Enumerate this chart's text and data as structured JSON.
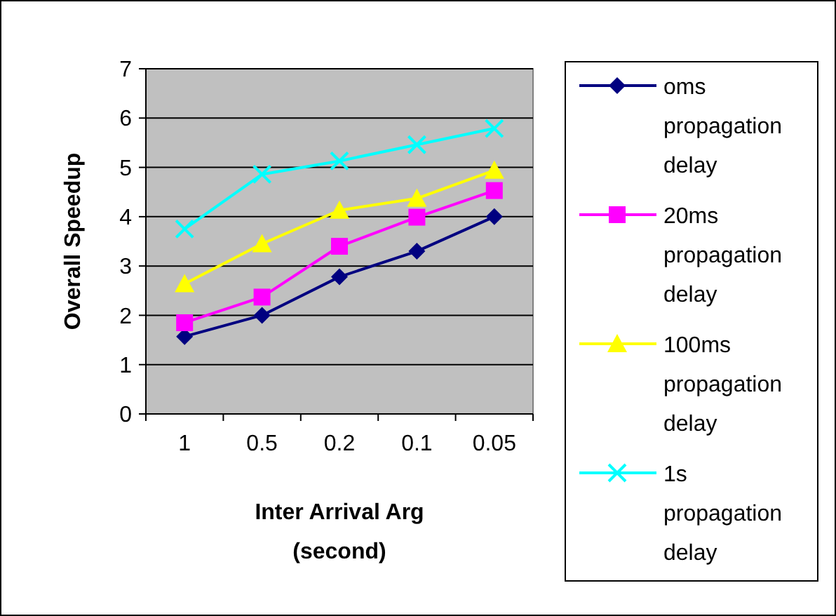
{
  "chart_data": {
    "type": "line",
    "xlabel": "Inter Arrival Arg (second)",
    "ylabel": "Overall Speedup",
    "categories": [
      "1",
      "0.5",
      "0.2",
      "0.1",
      "0.05"
    ],
    "series": [
      {
        "name": "oms propagation delay",
        "color": "#000080",
        "marker": "diamond",
        "values": [
          1.57,
          2.0,
          2.78,
          3.3,
          4.0
        ]
      },
      {
        "name": "20ms propagation delay",
        "color": "#ff00ff",
        "marker": "square",
        "values": [
          1.85,
          2.37,
          3.4,
          3.99,
          4.53
        ]
      },
      {
        "name": "100ms propagation delay",
        "color": "#ffff00",
        "marker": "triangle",
        "values": [
          2.64,
          3.45,
          4.13,
          4.37,
          4.94
        ]
      },
      {
        "name": "1s propagation delay",
        "color": "#00ffff",
        "marker": "cross",
        "values": [
          3.75,
          4.86,
          5.13,
          5.46,
          5.79
        ]
      }
    ],
    "ylim": [
      0,
      7
    ],
    "yticks": [
      0,
      1,
      2,
      3,
      4,
      5,
      6,
      7
    ],
    "grid": "y",
    "legend": "right"
  }
}
